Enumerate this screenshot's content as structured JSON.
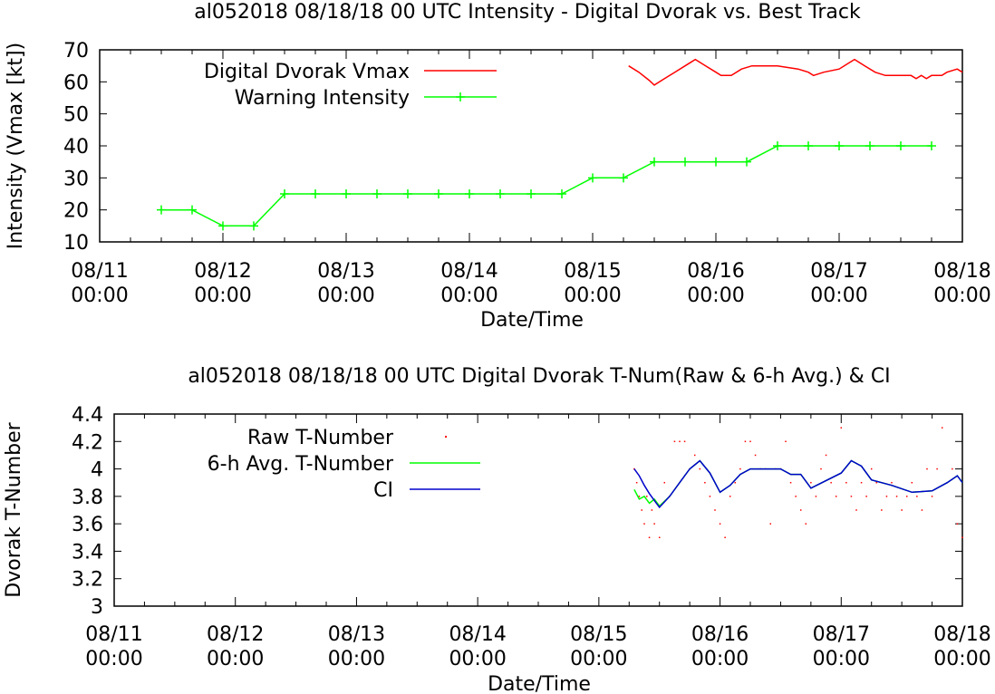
{
  "chart_data": [
    {
      "type": "line",
      "title": "al052018 08/18/18  00 UTC Intensity - Digital Dvorak vs. Best Track",
      "xlabel": "Date/Time",
      "ylabel": "Intensity (Vmax [kt])",
      "ylim": [
        10,
        70
      ],
      "yticks": [
        "10",
        "20",
        "30",
        "40",
        "50",
        "60",
        "70"
      ],
      "xlim": [
        "08/11 00:00",
        "08/18 00:00"
      ],
      "xtick_dates": [
        "08/11",
        "08/12",
        "08/13",
        "08/14",
        "08/15",
        "08/16",
        "08/17",
        "08/18"
      ],
      "xtick_times": [
        "00:00",
        "00:00",
        "00:00",
        "00:00",
        "00:00",
        "00:00",
        "00:00",
        "00:00"
      ],
      "grid": false,
      "legend_position": "top-left",
      "series": [
        {
          "name": "Digital Dvorak Vmax",
          "color": "#ff0000",
          "points": [
            [
              "08/15 07:00",
              65
            ],
            [
              "08/15 09:00",
              63
            ],
            [
              "08/15 11:00",
              60.5
            ],
            [
              "08/15 12:00",
              59
            ],
            [
              "08/15 14:00",
              61
            ],
            [
              "08/15 16:00",
              63
            ],
            [
              "08/15 18:00",
              65
            ],
            [
              "08/15 20:00",
              67
            ],
            [
              "08/15 22:00",
              65
            ],
            [
              "08/16 00:00",
              63
            ],
            [
              "08/16 01:00",
              62
            ],
            [
              "08/16 03:00",
              62
            ],
            [
              "08/16 05:00",
              64
            ],
            [
              "08/16 07:00",
              65
            ],
            [
              "08/16 12:00",
              65
            ],
            [
              "08/16 16:00",
              64
            ],
            [
              "08/16 18:00",
              63
            ],
            [
              "08/16 19:00",
              62
            ],
            [
              "08/16 21:00",
              63
            ],
            [
              "08/17 00:00",
              64
            ],
            [
              "08/17 02:00",
              66
            ],
            [
              "08/17 03:00",
              67
            ],
            [
              "08/17 05:00",
              65
            ],
            [
              "08/17 07:00",
              63
            ],
            [
              "08/17 09:00",
              62
            ],
            [
              "08/17 14:00",
              62
            ],
            [
              "08/17 15:00",
              61
            ],
            [
              "08/17 16:00",
              62
            ],
            [
              "08/17 17:00",
              61
            ],
            [
              "08/17 18:00",
              62
            ],
            [
              "08/17 20:00",
              62
            ],
            [
              "08/17 21:00",
              63
            ],
            [
              "08/17 23:00",
              64
            ],
            [
              "08/18 00:00",
              63
            ]
          ]
        },
        {
          "name": "Warning Intensity",
          "color": "#00ff00",
          "points": [
            [
              "08/11 12:00",
              20
            ],
            [
              "08/11 18:00",
              20
            ],
            [
              "08/12 00:00",
              15
            ],
            [
              "08/12 06:00",
              15
            ],
            [
              "08/12 12:00",
              25
            ],
            [
              "08/12 18:00",
              25
            ],
            [
              "08/13 00:00",
              25
            ],
            [
              "08/13 06:00",
              25
            ],
            [
              "08/13 12:00",
              25
            ],
            [
              "08/13 18:00",
              25
            ],
            [
              "08/14 00:00",
              25
            ],
            [
              "08/14 06:00",
              25
            ],
            [
              "08/14 12:00",
              25
            ],
            [
              "08/14 18:00",
              25
            ],
            [
              "08/15 00:00",
              30
            ],
            [
              "08/15 06:00",
              30
            ],
            [
              "08/15 12:00",
              35
            ],
            [
              "08/15 18:00",
              35
            ],
            [
              "08/16 00:00",
              35
            ],
            [
              "08/16 06:00",
              35
            ],
            [
              "08/16 12:00",
              40
            ],
            [
              "08/16 18:00",
              40
            ],
            [
              "08/17 00:00",
              40
            ],
            [
              "08/17 06:00",
              40
            ],
            [
              "08/17 12:00",
              40
            ],
            [
              "08/17 18:00",
              40
            ]
          ]
        }
      ]
    },
    {
      "type": "line",
      "title": "al052018 08/18/18  00 UTC Digital Dvorak T-Num(Raw & 6-h Avg.) & CI",
      "xlabel": "Date/Time",
      "ylabel": "Dvorak T-Number",
      "ylim": [
        3,
        4.4
      ],
      "yticks": [
        "3",
        "3.2",
        "3.4",
        "3.6",
        "3.8",
        "4",
        "4.2",
        "4.4"
      ],
      "xlim": [
        "08/11 00:00",
        "08/18 00:00"
      ],
      "xtick_dates": [
        "08/11",
        "08/12",
        "08/13",
        "08/14",
        "08/15",
        "08/16",
        "08/17",
        "08/18"
      ],
      "xtick_times": [
        "00:00",
        "00:00",
        "00:00",
        "00:00",
        "00:00",
        "00:00",
        "00:00",
        "00:00"
      ],
      "grid": false,
      "legend_position": "top-left",
      "series": [
        {
          "name": "Raw T-Number",
          "color": "#ff0000",
          "style": "points",
          "points": [
            [
              "08/15 07:00",
              4.0
            ],
            [
              "08/15 07:30",
              3.9
            ],
            [
              "08/15 08:00",
              3.8
            ],
            [
              "08/15 08:30",
              3.7
            ],
            [
              "08/15 09:00",
              3.6
            ],
            [
              "08/15 09:30",
              3.8
            ],
            [
              "08/15 10:00",
              3.5
            ],
            [
              "08/15 10:30",
              3.7
            ],
            [
              "08/15 11:00",
              3.6
            ],
            [
              "08/15 12:00",
              3.5
            ],
            [
              "08/15 13:00",
              3.9
            ],
            [
              "08/15 14:00",
              3.8
            ],
            [
              "08/15 15:00",
              4.2
            ],
            [
              "08/15 16:00",
              4.2
            ],
            [
              "08/15 17:00",
              4.2
            ],
            [
              "08/15 18:00",
              4.0
            ],
            [
              "08/15 19:00",
              4.1
            ],
            [
              "08/15 20:00",
              4.0
            ],
            [
              "08/15 21:00",
              3.9
            ],
            [
              "08/15 22:00",
              3.8
            ],
            [
              "08/15 23:00",
              3.7
            ],
            [
              "08/16 00:00",
              3.6
            ],
            [
              "08/16 01:00",
              3.5
            ],
            [
              "08/16 02:00",
              3.8
            ],
            [
              "08/16 03:00",
              3.9
            ],
            [
              "08/16 04:00",
              4.0
            ],
            [
              "08/16 05:00",
              4.2
            ],
            [
              "08/16 06:00",
              4.2
            ],
            [
              "08/16 07:00",
              4.1
            ],
            [
              "08/16 08:00",
              4.0
            ],
            [
              "08/16 09:00",
              4.0
            ],
            [
              "08/16 10:00",
              3.6
            ],
            [
              "08/16 11:00",
              4.0
            ],
            [
              "08/16 12:00",
              4.0
            ],
            [
              "08/16 13:00",
              4.2
            ],
            [
              "08/16 14:00",
              3.9
            ],
            [
              "08/16 15:00",
              3.8
            ],
            [
              "08/16 16:00",
              3.7
            ],
            [
              "08/16 17:00",
              3.6
            ],
            [
              "08/16 18:00",
              3.9
            ],
            [
              "08/16 19:00",
              3.8
            ],
            [
              "08/16 20:00",
              4.0
            ],
            [
              "08/16 21:00",
              4.1
            ],
            [
              "08/16 22:00",
              3.9
            ],
            [
              "08/16 23:00",
              3.8
            ],
            [
              "08/17 00:00",
              4.3
            ],
            [
              "08/17 01:00",
              3.9
            ],
            [
              "08/17 02:00",
              3.8
            ],
            [
              "08/17 03:00",
              3.7
            ],
            [
              "08/17 04:00",
              3.9
            ],
            [
              "08/17 05:00",
              3.8
            ],
            [
              "08/17 06:00",
              4.0
            ],
            [
              "08/17 07:00",
              3.9
            ],
            [
              "08/17 08:00",
              3.7
            ],
            [
              "08/17 09:00",
              3.8
            ],
            [
              "08/17 10:00",
              3.9
            ],
            [
              "08/17 11:00",
              3.8
            ],
            [
              "08/17 12:00",
              3.7
            ],
            [
              "08/17 13:00",
              3.8
            ],
            [
              "08/17 14:00",
              3.9
            ],
            [
              "08/17 15:00",
              3.8
            ],
            [
              "08/17 16:00",
              3.7
            ],
            [
              "08/17 17:00",
              4.0
            ],
            [
              "08/17 18:00",
              3.8
            ],
            [
              "08/17 19:00",
              4.0
            ],
            [
              "08/17 20:00",
              4.3
            ],
            [
              "08/17 21:00",
              3.9
            ],
            [
              "08/17 22:00",
              4.0
            ],
            [
              "08/17 23:00",
              3.6
            ],
            [
              "08/18 00:00",
              3.5
            ]
          ]
        },
        {
          "name": "6-h Avg. T-Number",
          "color": "#00ff00",
          "points": [
            [
              "08/15 07:00",
              3.85
            ],
            [
              "08/15 08:00",
              3.78
            ],
            [
              "08/15 09:00",
              3.8
            ],
            [
              "08/15 10:00",
              3.75
            ],
            [
              "08/15 11:00",
              3.78
            ],
            [
              "08/15 12:00",
              3.73
            ],
            [
              "08/15 14:00",
              3.8
            ],
            [
              "08/15 16:00",
              3.9
            ],
            [
              "08/15 18:00",
              4.0
            ],
            [
              "08/15 20:00",
              4.06
            ],
            [
              "08/15 22:00",
              3.97
            ],
            [
              "08/16 00:00",
              3.83
            ],
            [
              "08/16 02:00",
              3.88
            ],
            [
              "08/16 04:00",
              3.96
            ],
            [
              "08/16 06:00",
              4.0
            ],
            [
              "08/16 12:00",
              4.0
            ],
            [
              "08/16 14:00",
              3.96
            ],
            [
              "08/16 16:00",
              3.96
            ],
            [
              "08/16 18:00",
              3.86
            ],
            [
              "08/17 00:00",
              3.97
            ],
            [
              "08/17 02:00",
              4.06
            ],
            [
              "08/17 04:00",
              4.02
            ],
            [
              "08/17 06:00",
              3.92
            ],
            [
              "08/17 10:00",
              3.88
            ],
            [
              "08/17 14:00",
              3.83
            ],
            [
              "08/17 18:00",
              3.84
            ],
            [
              "08/17 21:00",
              3.9
            ],
            [
              "08/17 23:00",
              3.95
            ],
            [
              "08/18 00:00",
              3.9
            ]
          ]
        },
        {
          "name": "CI",
          "color": "#0000cc",
          "points": [
            [
              "08/15 07:00",
              4.0
            ],
            [
              "08/15 08:00",
              3.95
            ],
            [
              "08/15 09:00",
              3.88
            ],
            [
              "08/15 10:00",
              3.82
            ],
            [
              "08/15 11:00",
              3.77
            ],
            [
              "08/15 12:00",
              3.72
            ],
            [
              "08/15 14:00",
              3.8
            ],
            [
              "08/15 16:00",
              3.9
            ],
            [
              "08/15 18:00",
              4.0
            ],
            [
              "08/15 20:00",
              4.06
            ],
            [
              "08/15 22:00",
              3.97
            ],
            [
              "08/16 00:00",
              3.83
            ],
            [
              "08/16 02:00",
              3.88
            ],
            [
              "08/16 04:00",
              3.96
            ],
            [
              "08/16 06:00",
              4.0
            ],
            [
              "08/16 12:00",
              4.0
            ],
            [
              "08/16 14:00",
              3.96
            ],
            [
              "08/16 16:00",
              3.96
            ],
            [
              "08/16 18:00",
              3.86
            ],
            [
              "08/17 00:00",
              3.97
            ],
            [
              "08/17 02:00",
              4.06
            ],
            [
              "08/17 04:00",
              4.02
            ],
            [
              "08/17 06:00",
              3.92
            ],
            [
              "08/17 10:00",
              3.88
            ],
            [
              "08/17 14:00",
              3.83
            ],
            [
              "08/17 18:00",
              3.84
            ],
            [
              "08/17 21:00",
              3.9
            ],
            [
              "08/17 23:00",
              3.95
            ],
            [
              "08/18 00:00",
              3.9
            ]
          ]
        }
      ]
    }
  ]
}
